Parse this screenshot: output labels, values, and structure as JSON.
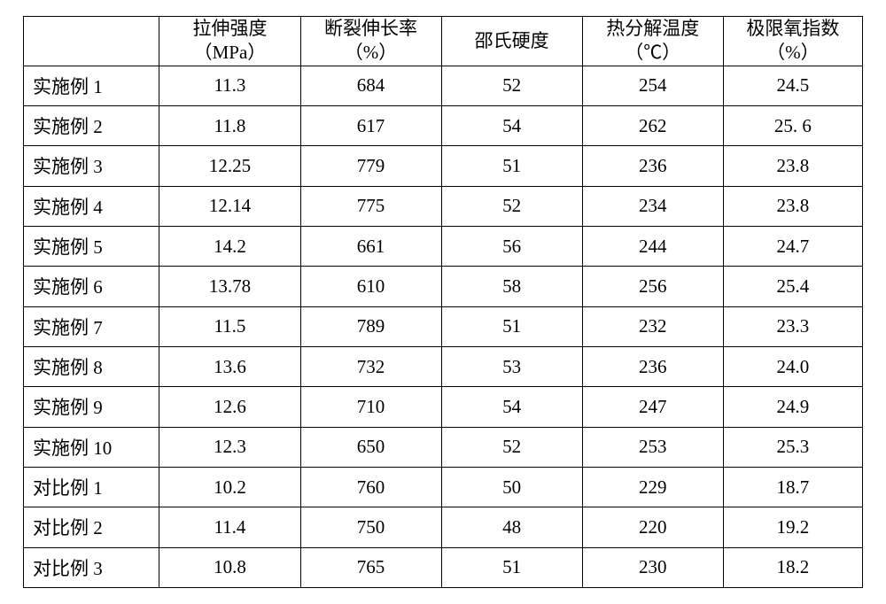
{
  "table": {
    "type": "table",
    "background_color": "#ffffff",
    "border_color": "#000000",
    "font_color": "#000000",
    "font_size_pt": 16,
    "column_widths_pct": [
      16.2,
      16.8,
      16.8,
      16.8,
      16.8,
      16.6
    ],
    "columns": [
      {
        "label_line1": "",
        "label_line2": "",
        "align": "left"
      },
      {
        "label_line1": "拉伸强度",
        "label_line2": "（MPa）",
        "align": "center"
      },
      {
        "label_line1": "断裂伸长率",
        "label_line2": "（%）",
        "align": "center"
      },
      {
        "label_line1": "邵氏硬度",
        "label_line2": "",
        "align": "center"
      },
      {
        "label_line1": "热分解温度",
        "label_line2": "（℃）",
        "align": "center"
      },
      {
        "label_line1": "极限氧指数",
        "label_line2": "（%）",
        "align": "center"
      }
    ],
    "rows": [
      {
        "label": "实施例 1",
        "tensile": "11.3",
        "elong": "684",
        "shore": "52",
        "decomp": "254",
        "loi": "24.5"
      },
      {
        "label": "实施例 2",
        "tensile": "11.8",
        "elong": "617",
        "shore": "54",
        "decomp": "262",
        "loi": "25. 6"
      },
      {
        "label": "实施例 3",
        "tensile": "12.25",
        "elong": "779",
        "shore": "51",
        "decomp": "236",
        "loi": "23.8"
      },
      {
        "label": "实施例 4",
        "tensile": "12.14",
        "elong": "775",
        "shore": "52",
        "decomp": "234",
        "loi": "23.8"
      },
      {
        "label": "实施例 5",
        "tensile": "14.2",
        "elong": "661",
        "shore": "56",
        "decomp": "244",
        "loi": "24.7"
      },
      {
        "label": "实施例 6",
        "tensile": "13.78",
        "elong": "610",
        "shore": "58",
        "decomp": "256",
        "loi": "25.4"
      },
      {
        "label": "实施例 7",
        "tensile": "11.5",
        "elong": "789",
        "shore": "51",
        "decomp": "232",
        "loi": "23.3"
      },
      {
        "label": "实施例 8",
        "tensile": "13.6",
        "elong": "732",
        "shore": "53",
        "decomp": "236",
        "loi": "24.0"
      },
      {
        "label": "实施例 9",
        "tensile": "12.6",
        "elong": "710",
        "shore": "54",
        "decomp": "247",
        "loi": "24.9"
      },
      {
        "label": "实施例 10",
        "tensile": "12.3",
        "elong": "650",
        "shore": "52",
        "decomp": "253",
        "loi": "25.3"
      },
      {
        "label": "对比例 1",
        "tensile": "10.2",
        "elong": "760",
        "shore": "50",
        "decomp": "229",
        "loi": "18.7"
      },
      {
        "label": "对比例 2",
        "tensile": "11.4",
        "elong": "750",
        "shore": "48",
        "decomp": "220",
        "loi": "19.2"
      },
      {
        "label": "对比例 3",
        "tensile": "10.8",
        "elong": "765",
        "shore": "51",
        "decomp": "230",
        "loi": "18.2"
      }
    ]
  }
}
